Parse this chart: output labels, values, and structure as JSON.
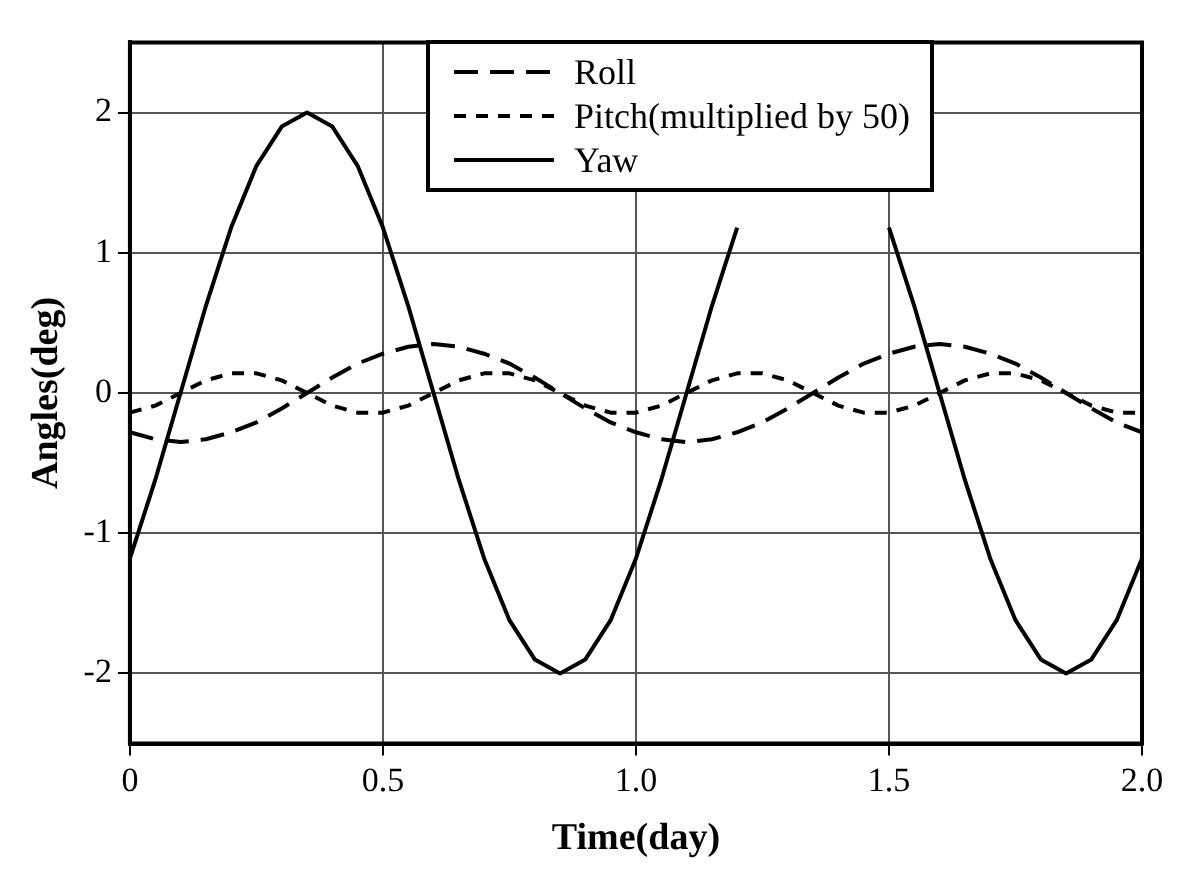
{
  "chart_data": {
    "type": "line",
    "xlabel": "Time(day)",
    "ylabel": "Angles(deg)",
    "x": [
      0,
      0.05,
      0.1,
      0.15,
      0.2,
      0.25,
      0.3,
      0.35,
      0.4,
      0.45,
      0.5,
      0.55,
      0.6,
      0.65,
      0.7,
      0.75,
      0.8,
      0.85,
      0.9,
      0.95,
      1,
      1.05,
      1.1,
      1.15,
      1.2,
      1.25,
      1.3,
      1.35,
      1.4,
      1.45,
      1.5,
      1.55,
      1.6,
      1.65,
      1.7,
      1.75,
      1.8,
      1.85,
      1.9,
      1.95,
      2
    ],
    "series": [
      {
        "name": "Roll",
        "color": "#000000",
        "line_style": "dashed",
        "values": [
          -0.28,
          -0.33,
          -0.35,
          -0.33,
          -0.28,
          -0.21,
          -0.11,
          0,
          0.11,
          0.21,
          0.28,
          0.33,
          0.35,
          0.33,
          0.28,
          0.21,
          0.11,
          0,
          -0.11,
          -0.21,
          -0.28,
          -0.33,
          -0.35,
          -0.33,
          -0.28,
          -0.21,
          -0.11,
          0,
          0.11,
          0.21,
          0.28,
          0.33,
          0.35,
          0.33,
          0.28,
          0.21,
          0.11,
          0,
          -0.11,
          -0.21,
          -0.28
        ]
      },
      {
        "name": "Pitch(multiplied by 50)",
        "color": "#000000",
        "line_style": "dotted",
        "values": [
          -0.14,
          -0.09,
          0,
          0.09,
          0.14,
          0.14,
          0.09,
          0,
          -0.09,
          -0.14,
          -0.14,
          -0.09,
          0,
          0.09,
          0.14,
          0.14,
          0.09,
          0,
          -0.09,
          -0.14,
          -0.14,
          -0.09,
          0,
          0.09,
          0.14,
          0.14,
          0.09,
          0,
          -0.09,
          -0.14,
          -0.14,
          -0.09,
          0,
          0.09,
          0.14,
          0.14,
          0.09,
          0,
          -0.09,
          -0.14,
          -0.14
        ]
      },
      {
        "name": "Yaw",
        "color": "#000000",
        "line_style": "solid",
        "values": [
          -1.18,
          -0.62,
          0,
          0.62,
          1.18,
          1.62,
          1.9,
          2,
          1.9,
          1.62,
          1.18,
          0.62,
          0,
          -0.62,
          -1.18,
          -1.62,
          -1.9,
          -2,
          -1.9,
          -1.62,
          -1.18,
          -0.62,
          0,
          0.62,
          1.18,
          null,
          null,
          null,
          null,
          null,
          1.18,
          0.62,
          0,
          -0.62,
          -1.18,
          -1.62,
          -1.9,
          -2,
          -1.9,
          -1.62,
          -1.18
        ]
      }
    ],
    "xlim": [
      0,
      2
    ],
    "xticks": [
      0,
      0.5,
      {
        "value": 1,
        "label": "1.0"
      },
      1.5,
      {
        "value": 2,
        "label": "2.0"
      }
    ],
    "ylim": [
      -2.5,
      2.5
    ],
    "yticks": [
      -2,
      -1,
      0,
      1,
      2
    ],
    "grid": true,
    "legend": "top",
    "marker": "none"
  }
}
